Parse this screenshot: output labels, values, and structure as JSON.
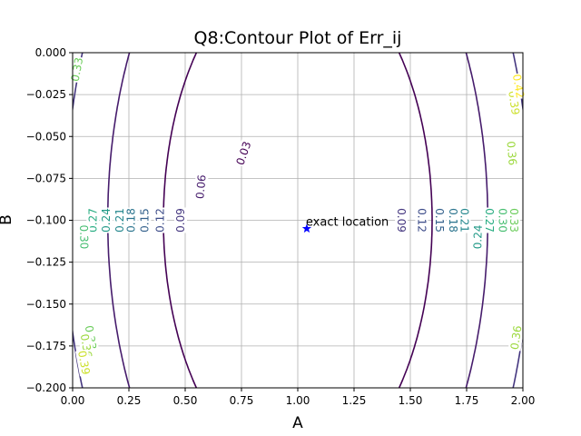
{
  "chart_data": {
    "type": "contour",
    "title": "Q8:Contour Plot of Err_ij",
    "xlabel": "A",
    "ylabel": "B",
    "xlim": [
      0.0,
      2.0
    ],
    "ylim": [
      -0.2,
      0.0
    ],
    "grid": true,
    "x_ticks": [
      0.0,
      0.25,
      0.5,
      0.75,
      1.0,
      1.25,
      1.5,
      1.75,
      2.0
    ],
    "x_tick_labels": [
      "0.00",
      "0.25",
      "0.50",
      "0.75",
      "1.00",
      "1.25",
      "1.50",
      "1.75",
      "2.00"
    ],
    "y_ticks": [
      0.0,
      -0.025,
      -0.05,
      -0.075,
      -0.1,
      -0.125,
      -0.15,
      -0.175,
      -0.2
    ],
    "y_tick_labels": [
      "0.000",
      "−0.025",
      "−0.050",
      "−0.075",
      "−0.100",
      "−0.125",
      "−0.150",
      "−0.175",
      "−0.200"
    ],
    "center": {
      "A": 1.0,
      "B": -0.1
    },
    "levels": [
      0.03,
      0.06,
      0.09,
      0.12,
      0.15,
      0.18,
      0.21,
      0.24,
      0.27,
      0.3,
      0.33,
      0.36,
      0.39,
      0.42
    ],
    "contour_labels": [
      {
        "text": "0.03",
        "A": 0.76,
        "B": -0.06,
        "level": 0.03
      },
      {
        "text": "0.06",
        "A": 0.57,
        "B": -0.08,
        "level": 0.06
      },
      {
        "text": "0.09",
        "A": 0.48,
        "B": -0.1,
        "level": 0.09
      },
      {
        "text": "0.09",
        "A": 1.46,
        "B": -0.1,
        "level": 0.09
      },
      {
        "text": "0.12",
        "A": 0.39,
        "B": -0.1,
        "level": 0.12
      },
      {
        "text": "0.12",
        "A": 1.55,
        "B": -0.1,
        "level": 0.12
      },
      {
        "text": "0.15",
        "A": 0.32,
        "B": -0.1,
        "level": 0.15
      },
      {
        "text": "0.15",
        "A": 1.63,
        "B": -0.1,
        "level": 0.15
      },
      {
        "text": "0.18",
        "A": 0.26,
        "B": -0.1,
        "level": 0.18
      },
      {
        "text": "0.18",
        "A": 1.69,
        "B": -0.1,
        "level": 0.18
      },
      {
        "text": "0.21",
        "A": 0.21,
        "B": -0.1,
        "level": 0.21
      },
      {
        "text": "0.21",
        "A": 1.74,
        "B": -0.1,
        "level": 0.21
      },
      {
        "text": "0.24",
        "A": 0.15,
        "B": -0.1,
        "level": 0.24
      },
      {
        "text": "0.24",
        "A": 1.8,
        "B": -0.11,
        "level": 0.24
      },
      {
        "text": "0.27",
        "A": 0.09,
        "B": -0.1,
        "level": 0.27
      },
      {
        "text": "0.27",
        "A": 1.85,
        "B": -0.1,
        "level": 0.27
      },
      {
        "text": "0.30",
        "A": 0.05,
        "B": -0.11,
        "level": 0.3
      },
      {
        "text": "0.30",
        "A": 1.91,
        "B": -0.1,
        "level": 0.3
      },
      {
        "text": "0.33",
        "A": 0.02,
        "B": -0.01,
        "level": 0.33
      },
      {
        "text": "0.33",
        "A": 1.96,
        "B": -0.1,
        "level": 0.33
      },
      {
        "text": "0.33",
        "A": 0.08,
        "B": -0.17,
        "level": 0.33
      },
      {
        "text": "0.36",
        "A": 1.95,
        "B": -0.06,
        "level": 0.36
      },
      {
        "text": "0.36",
        "A": 0.06,
        "B": -0.175,
        "level": 0.36
      },
      {
        "text": "0.36",
        "A": 1.97,
        "B": -0.17,
        "level": 0.36
      },
      {
        "text": "0.39",
        "A": 1.96,
        "B": -0.03,
        "level": 0.39
      },
      {
        "text": "0.39",
        "A": 0.05,
        "B": -0.185,
        "level": 0.39
      },
      {
        "text": "0.42",
        "A": 1.98,
        "B": -0.02,
        "level": 0.42
      }
    ],
    "marker": {
      "A": 1.04,
      "B": -0.105,
      "label": "exact location",
      "shape": "star",
      "color": "#0000ff"
    },
    "colormap": [
      "#440154",
      "#472d7b",
      "#3b528b",
      "#2c728e",
      "#21918c",
      "#28ae80",
      "#5ec962",
      "#addc30",
      "#fde725"
    ]
  }
}
